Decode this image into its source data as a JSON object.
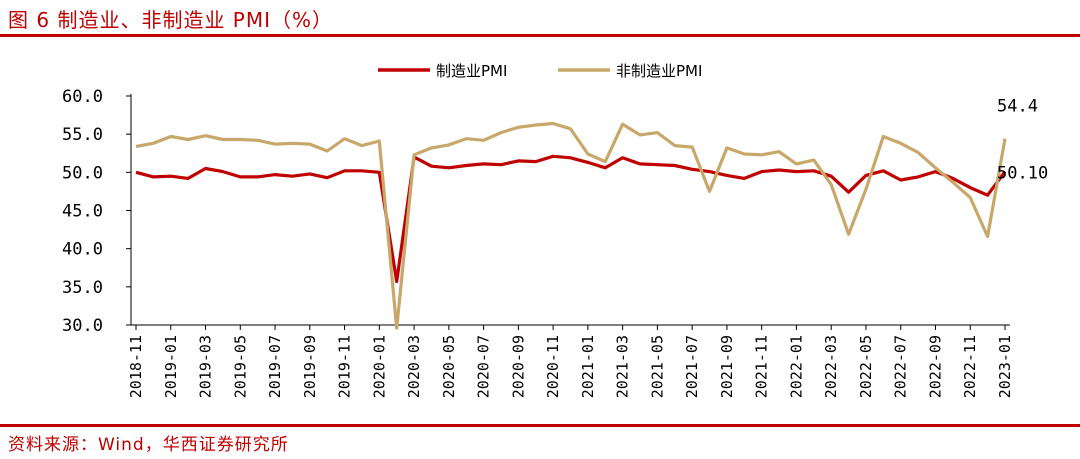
{
  "header": {
    "title": "图 6  制造业、非制造业 PMI（%）"
  },
  "footer": {
    "source": "资料来源：Wind，华西证券研究所"
  },
  "colors": {
    "accent": "#c00000",
    "manufacturing": "#c00000",
    "non_manufacturing": "#c8a86a",
    "axis": "#000000"
  },
  "chart_data": {
    "type": "line",
    "title": "",
    "xlabel": "",
    "ylabel": "",
    "ylim": [
      30,
      60
    ],
    "yticks": [
      "30.0",
      "35.0",
      "40.0",
      "45.0",
      "50.0",
      "55.0",
      "60.0"
    ],
    "grid": false,
    "legend": "top-center",
    "x": [
      "2018-11",
      "2018-12",
      "2019-01",
      "2019-02",
      "2019-03",
      "2019-04",
      "2019-05",
      "2019-06",
      "2019-07",
      "2019-08",
      "2019-09",
      "2019-10",
      "2019-11",
      "2019-12",
      "2020-01",
      "2020-02",
      "2020-03",
      "2020-04",
      "2020-05",
      "2020-06",
      "2020-07",
      "2020-08",
      "2020-09",
      "2020-10",
      "2020-11",
      "2020-12",
      "2021-01",
      "2021-02",
      "2021-03",
      "2021-04",
      "2021-05",
      "2021-06",
      "2021-07",
      "2021-08",
      "2021-09",
      "2021-10",
      "2021-11",
      "2021-12",
      "2022-01",
      "2022-02",
      "2022-03",
      "2022-04",
      "2022-05",
      "2022-06",
      "2022-07",
      "2022-08",
      "2022-09",
      "2022-10",
      "2022-11",
      "2022-12",
      "2023-01"
    ],
    "xtick_labels": [
      "2018-11",
      "2019-01",
      "2019-03",
      "2019-05",
      "2019-07",
      "2019-09",
      "2019-11",
      "2020-01",
      "2020-03",
      "2020-05",
      "2020-07",
      "2020-09",
      "2020-11",
      "2021-01",
      "2021-03",
      "2021-05",
      "2021-07",
      "2021-09",
      "2021-11",
      "2022-01",
      "2022-03",
      "2022-05",
      "2022-07",
      "2022-09",
      "2022-11",
      "2023-01"
    ],
    "series": [
      {
        "name": "制造业PMI",
        "values": [
          50.0,
          49.4,
          49.5,
          49.2,
          50.5,
          50.1,
          49.4,
          49.4,
          49.7,
          49.5,
          49.8,
          49.3,
          50.2,
          50.2,
          50.0,
          35.7,
          52.0,
          50.8,
          50.6,
          50.9,
          51.1,
          51.0,
          51.5,
          51.4,
          52.1,
          51.9,
          51.3,
          50.6,
          51.9,
          51.1,
          51.0,
          50.9,
          50.4,
          50.1,
          49.6,
          49.2,
          50.1,
          50.3,
          50.1,
          50.2,
          49.5,
          47.4,
          49.6,
          50.2,
          49.0,
          49.4,
          50.1,
          49.2,
          48.0,
          47.0,
          50.1
        ]
      },
      {
        "name": "非制造业PMI",
        "values": [
          53.4,
          53.8,
          54.7,
          54.3,
          54.8,
          54.3,
          54.3,
          54.2,
          53.7,
          53.8,
          53.7,
          52.8,
          54.4,
          53.5,
          54.1,
          29.6,
          52.3,
          53.2,
          53.6,
          54.4,
          54.2,
          55.2,
          55.9,
          56.2,
          56.4,
          55.7,
          52.4,
          51.4,
          56.3,
          54.9,
          55.2,
          53.5,
          53.3,
          47.5,
          53.2,
          52.4,
          52.3,
          52.7,
          51.1,
          51.6,
          48.4,
          41.9,
          47.8,
          54.7,
          53.8,
          52.6,
          50.6,
          48.7,
          46.7,
          41.6,
          54.4
        ]
      }
    ],
    "annotations": [
      {
        "series": "非制造业PMI",
        "x": "2023-01",
        "text": "54.4"
      },
      {
        "series": "制造业PMI",
        "x": "2023-01",
        "text": "50.10"
      }
    ]
  }
}
